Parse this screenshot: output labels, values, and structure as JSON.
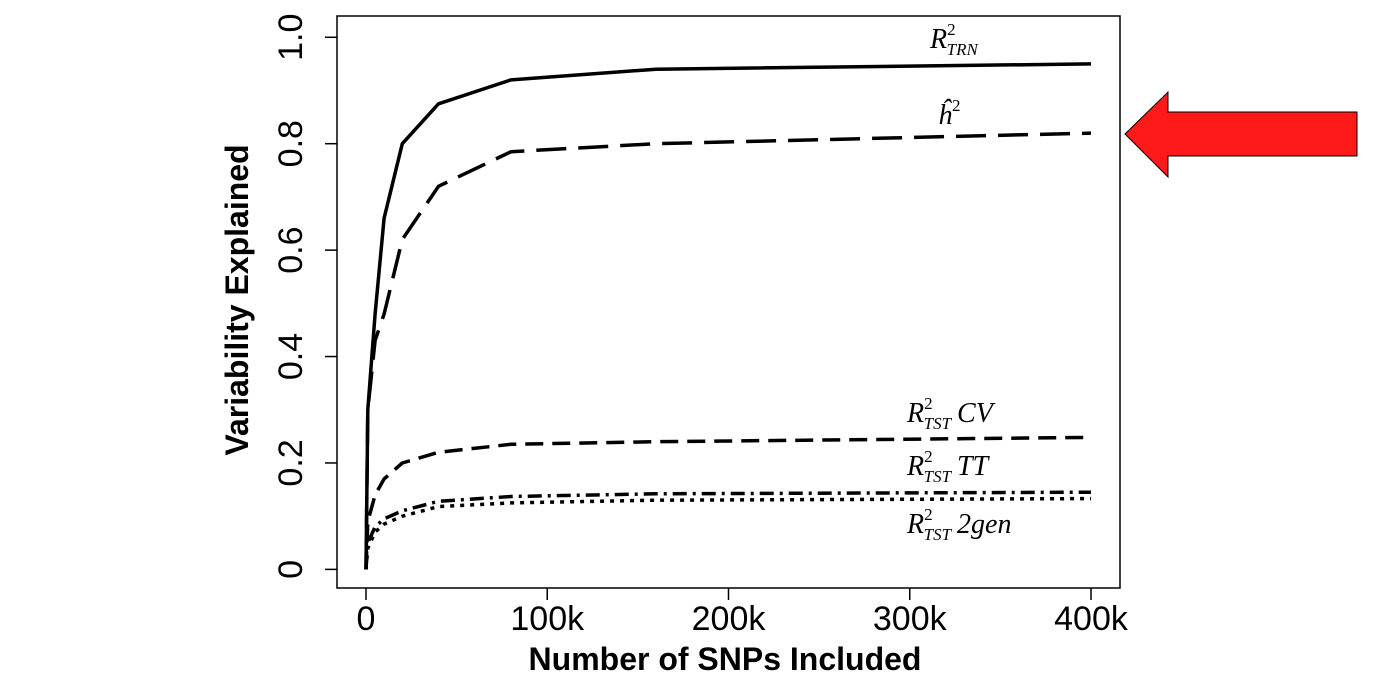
{
  "chart_data": {
    "type": "line",
    "xlabel": "Number of SNPs Included",
    "ylabel": "Variability Explained",
    "xlim": [
      -16000,
      416000
    ],
    "ylim": [
      -0.035,
      1.04
    ],
    "xticks": [
      0,
      100000,
      200000,
      300000,
      400000
    ],
    "xtick_labels": [
      "0",
      "100k",
      "200k",
      "300k",
      "400k"
    ],
    "yticks": [
      0,
      0.2,
      0.4,
      0.6,
      0.8,
      1.0
    ],
    "ytick_labels": [
      "0",
      "0.2",
      "0.4",
      "0.6",
      "0.8",
      "1.0"
    ],
    "grid": false,
    "legend": "none",
    "series": [
      {
        "label_base": "R",
        "label_sup": "2",
        "label_sub": "TRN",
        "label_tail": "",
        "style": "solid",
        "x": [
          0,
          1000,
          5000,
          10000,
          20000,
          40000,
          80000,
          160000,
          400000
        ],
        "y": [
          0,
          0.3,
          0.48,
          0.66,
          0.8,
          0.875,
          0.92,
          0.94,
          0.95
        ]
      },
      {
        "label_base": "ĥ",
        "label_sup": "2",
        "label_sub": "",
        "label_tail": "",
        "style": "long-dash",
        "x": [
          0,
          1000,
          5000,
          10000,
          20000,
          40000,
          80000,
          160000,
          400000
        ],
        "y": [
          0,
          0.3,
          0.43,
          0.48,
          0.62,
          0.72,
          0.785,
          0.8,
          0.82
        ]
      },
      {
        "label_base": "R",
        "label_sup": "2",
        "label_sub": "TST",
        "label_tail": "CV",
        "style": "dash",
        "x": [
          0,
          1000,
          5000,
          10000,
          20000,
          40000,
          80000,
          160000,
          400000
        ],
        "y": [
          0,
          0.09,
          0.14,
          0.17,
          0.2,
          0.22,
          0.235,
          0.24,
          0.248
        ]
      },
      {
        "label_base": "R",
        "label_sup": "2",
        "label_sub": "TST",
        "label_tail": "TT",
        "style": "dash-dot",
        "x": [
          0,
          1000,
          5000,
          10000,
          20000,
          40000,
          80000,
          160000,
          400000
        ],
        "y": [
          0,
          0.05,
          0.08,
          0.095,
          0.11,
          0.128,
          0.137,
          0.142,
          0.145
        ]
      },
      {
        "label_base": "R",
        "label_sup": "2",
        "label_sub": "TST",
        "label_tail": "2gen",
        "style": "dotted",
        "x": [
          0,
          1000,
          5000,
          10000,
          20000,
          40000,
          80000,
          160000,
          400000
        ],
        "y": [
          0,
          0.04,
          0.07,
          0.085,
          0.1,
          0.118,
          0.125,
          0.13,
          0.133
        ]
      }
    ],
    "annotation": {
      "type": "arrow",
      "color": "#ff1a1a",
      "points_at": "ĥ² curve"
    }
  }
}
